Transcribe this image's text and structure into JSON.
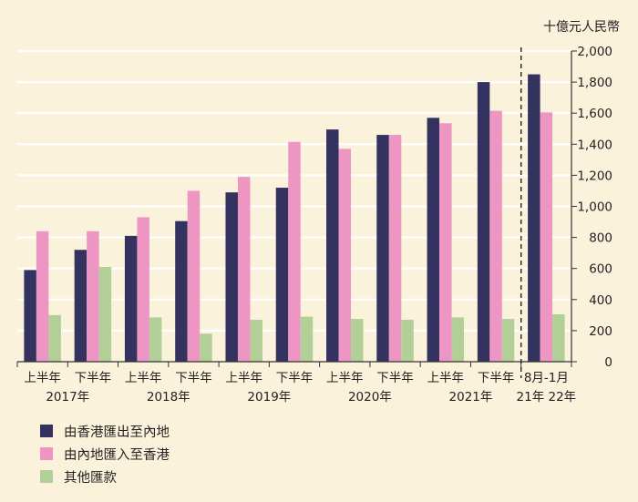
{
  "chart_data": {
    "type": "bar",
    "unit_label": "十億元人民幣",
    "categories": [
      {
        "top": "上半年",
        "bottom": "2017年"
      },
      {
        "top": "下半年",
        "bottom": ""
      },
      {
        "top": "上半年",
        "bottom": "2018年"
      },
      {
        "top": "下半年",
        "bottom": ""
      },
      {
        "top": "上半年",
        "bottom": "2019年"
      },
      {
        "top": "下半年",
        "bottom": ""
      },
      {
        "top": "上半年",
        "bottom": "2020年"
      },
      {
        "top": "下半年",
        "bottom": ""
      },
      {
        "top": "上半年",
        "bottom": "2021年"
      },
      {
        "top": "下半年",
        "bottom": ""
      },
      {
        "top": "8月-1月",
        "bottom": "21年  22年"
      }
    ],
    "series": [
      {
        "name": "由香港匯出至內地",
        "color": "#34325f",
        "values": [
          590,
          720,
          810,
          905,
          1090,
          1120,
          1495,
          1460,
          1570,
          1800,
          1850
        ]
      },
      {
        "name": "由內地匯入至香港",
        "color": "#ee96c3",
        "values": [
          840,
          840,
          930,
          1100,
          1190,
          1415,
          1370,
          1460,
          1535,
          1615,
          1605
        ]
      },
      {
        "name": "其他匯款",
        "color": "#b2cf98",
        "values": [
          300,
          610,
          285,
          180,
          270,
          290,
          275,
          270,
          285,
          275,
          305
        ]
      }
    ],
    "yticks": [
      "0",
      "200",
      "400",
      "600",
      "800",
      "1,000",
      "1,200",
      "1,400",
      "1,600",
      "1,800",
      "2,000"
    ],
    "ylim": [
      0,
      2000
    ],
    "grid": true,
    "axis_side": "right",
    "legend_position": "bottom-left",
    "divider_after_index": 9
  }
}
